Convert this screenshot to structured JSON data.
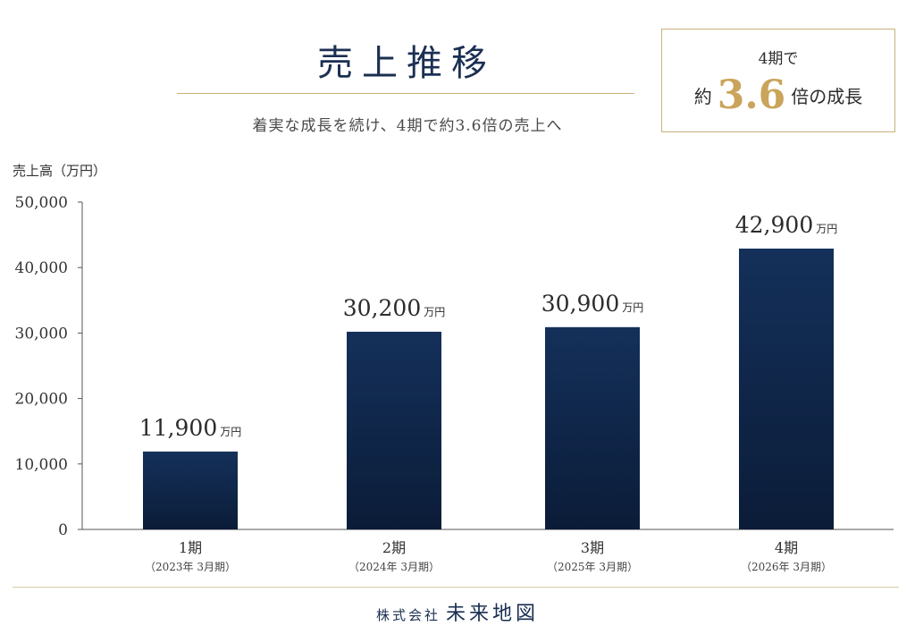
{
  "header": {
    "title": "売上推移",
    "subtitle": "着実な成長を続け、4期で約3.6倍の売上へ"
  },
  "badge": {
    "line1": "4期で",
    "prefix": "約",
    "number": "3.6",
    "suffix": "倍の成長"
  },
  "footer": {
    "company_prefix": "株式会社",
    "company_name": "未来地図"
  },
  "colors": {
    "bar": "#14305a",
    "bar_dark": "#0b1c38",
    "gold": "#c9b27a",
    "title": "#1b2f52"
  },
  "chart_data": {
    "type": "bar",
    "ylabel": "売上高（万円）",
    "ylim": [
      0,
      50000
    ],
    "yticks": [
      "0",
      "10,000",
      "20,000",
      "30,000",
      "40,000",
      "50,000"
    ],
    "categories": [
      "1期",
      "2期",
      "3期",
      "4期"
    ],
    "category_sublabels": [
      "（2023年 3月期）",
      "（2024年 3月期）",
      "（2025年 3月期）",
      "（2026年 3月期）"
    ],
    "values": [
      11900,
      30200,
      30900,
      42900
    ],
    "value_labels": [
      "11,900",
      "30,200",
      "30,900",
      "42,900"
    ],
    "value_unit": "万円",
    "grid": false
  }
}
